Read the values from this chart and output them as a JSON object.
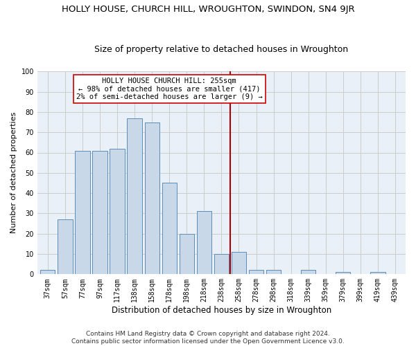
{
  "title1": "HOLLY HOUSE, CHURCH HILL, WROUGHTON, SWINDON, SN4 9JR",
  "title2": "Size of property relative to detached houses in Wroughton",
  "xlabel": "Distribution of detached houses by size in Wroughton",
  "ylabel": "Number of detached properties",
  "categories": [
    "37sqm",
    "57sqm",
    "77sqm",
    "97sqm",
    "117sqm",
    "138sqm",
    "158sqm",
    "178sqm",
    "198sqm",
    "218sqm",
    "238sqm",
    "258sqm",
    "278sqm",
    "298sqm",
    "318sqm",
    "339sqm",
    "359sqm",
    "379sqm",
    "399sqm",
    "419sqm",
    "439sqm"
  ],
  "values": [
    2,
    27,
    61,
    61,
    62,
    77,
    75,
    45,
    20,
    31,
    10,
    11,
    2,
    2,
    0,
    2,
    0,
    1,
    0,
    1,
    0
  ],
  "bar_color": "#c8d8e8",
  "bar_edge_color": "#5b8db8",
  "vline_color": "#aa0000",
  "annotation_text": "HOLLY HOUSE CHURCH HILL: 255sqm\n← 98% of detached houses are smaller (417)\n2% of semi-detached houses are larger (9) →",
  "annotation_box_facecolor": "#ffffff",
  "annotation_box_edgecolor": "#cc0000",
  "ylim": [
    0,
    100
  ],
  "yticks": [
    0,
    10,
    20,
    30,
    40,
    50,
    60,
    70,
    80,
    90,
    100
  ],
  "grid_color": "#cccccc",
  "bg_color": "#eaf0f8",
  "footer": "Contains HM Land Registry data © Crown copyright and database right 2024.\nContains public sector information licensed under the Open Government Licence v3.0.",
  "title1_fontsize": 9.5,
  "title2_fontsize": 9,
  "xlabel_fontsize": 8.5,
  "ylabel_fontsize": 8,
  "tick_fontsize": 7,
  "annot_fontsize": 7.5,
  "footer_fontsize": 6.5
}
